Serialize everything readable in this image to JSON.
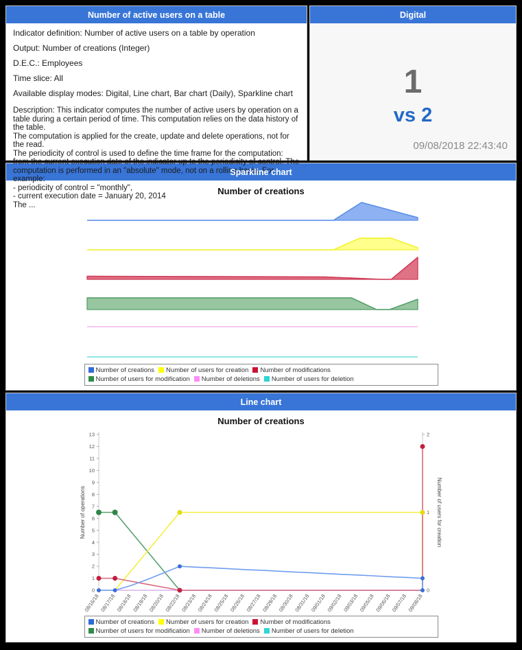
{
  "accent_color": "#3875d7",
  "indicator_panel": {
    "header": "Number of active users on a table",
    "info_lines": [
      "Indicator definition: Number of active users on a table by operation",
      "Output: Number of creations (Integer)",
      "D.E.C.: Employees",
      "Time slice: All",
      "Available display modes: Digital, Line chart, Bar chart (Daily), Sparkline chart"
    ],
    "description_lines": [
      "Description: This indicator computes the number of active users by operation on a table during a certain period of time. This computation relies on the data history of the table.",
      "The computation is applied for the create, update and delete operations, not for the read.",
      "The periodicity of control is used to define the time frame for the computation: from the current execution date of the indicator up to the periodicity of control. The computation is performed in an \"absolute\" mode, not on a rolling basis. For example:",
      "- periodicity of control = \"monthly\",",
      "- current execution date = January 20, 2014",
      "The ..."
    ]
  },
  "digital_panel": {
    "header": "Digital",
    "value": "1",
    "vs_label": "vs 2",
    "timestamp": "09/08/2018 22:43:40"
  },
  "sparkline_panel": {
    "header": "Sparkline chart",
    "title": "Number of creations"
  },
  "line_panel": {
    "header": "Line chart",
    "title": "Number of creations"
  },
  "legend": {
    "items": [
      {
        "label": "Number of creations",
        "color": "#2f6bdb"
      },
      {
        "label": "Number of users for creation",
        "color": "#ffff00"
      },
      {
        "label": "Number of modifications",
        "color": "#cc1133"
      },
      {
        "label": "Number of users for modification",
        "color": "#2d8c46"
      },
      {
        "label": "Number of deletions",
        "color": "#ff8cf7"
      },
      {
        "label": "Number of users for deletion",
        "color": "#2fd5d5"
      }
    ]
  },
  "chart_data": [
    {
      "type": "area",
      "variant": "sparklines",
      "title": "Number of creations",
      "series": [
        {
          "name": "Number of creations",
          "stroke": "#5d8fe8",
          "fill": "#82a9ef",
          "points": [
            [
              0,
              0
            ],
            [
              0.745,
              0
            ],
            [
              0.83,
              26
            ],
            [
              1,
              4
            ]
          ]
        },
        {
          "name": "Number of users for creation",
          "stroke": "#f2f22e",
          "fill": "#ffff80",
          "points": [
            [
              0,
              0
            ],
            [
              0.745,
              0
            ],
            [
              0.825,
              17
            ],
            [
              0.92,
              17
            ],
            [
              1,
              3
            ]
          ]
        },
        {
          "name": "Number of modifications",
          "stroke": "#cf3b57",
          "fill": "#dd6379",
          "points": [
            [
              0,
              4.5
            ],
            [
              0.72,
              3.5
            ],
            [
              0.89,
              0
            ],
            [
              0.92,
              0
            ],
            [
              1,
              32
            ]
          ]
        },
        {
          "name": "Number of users for modification",
          "stroke": "#55a06b",
          "fill": "#8cc096",
          "points": [
            [
              0,
              17
            ],
            [
              0.8,
              17
            ],
            [
              0.875,
              0
            ],
            [
              0.915,
              0
            ],
            [
              1,
              15
            ]
          ]
        },
        {
          "name": "Number of deletions",
          "stroke": "#f5b5f0",
          "fill": "none",
          "points": [
            [
              0,
              0
            ],
            [
              1,
              0
            ]
          ]
        },
        {
          "name": "Number of users for deletion",
          "stroke": "#6ce0e0",
          "fill": "none",
          "points": [
            [
              0,
              0
            ],
            [
              1,
              0
            ]
          ]
        }
      ]
    },
    {
      "type": "line",
      "title": "Number of creations",
      "x": [
        "08/16/18",
        "08/17/18",
        "08/18/18",
        "08/19/18",
        "08/20/18",
        "08/22/18",
        "08/23/18",
        "08/24/18",
        "08/25/18",
        "08/26/18",
        "08/27/18",
        "08/29/18",
        "08/30/18",
        "08/31/18",
        "09/01/18",
        "09/02/18",
        "09/03/18",
        "09/05/18",
        "09/06/18",
        "09/07/18",
        "09/08/18"
      ],
      "ylabel_left": "Number of operations",
      "ylabel_right": "Number of users for creation",
      "ylim_left": [
        0,
        13
      ],
      "ylim_right": [
        0,
        2
      ],
      "grid": false,
      "legend_position": "bottom",
      "series": [
        {
          "name": "Number of creations",
          "axis": "left",
          "color": "#6f9df0",
          "marker_color": "#3a6fd8",
          "marker_r": 3,
          "values": [
            0,
            0,
            0.4,
            0.9,
            1.45,
            2,
            1.93,
            1.87,
            1.8,
            1.73,
            1.67,
            1.6,
            1.53,
            1.47,
            1.4,
            1.33,
            1.27,
            1.2,
            1.13,
            1.07,
            1
          ],
          "markers": [
            [
              0,
              0
            ],
            [
              1,
              0
            ],
            [
              5,
              2
            ],
            [
              20,
              1
            ],
            [
              20,
              0
            ]
          ],
          "final_vertical_to": 0
        },
        {
          "name": "Number of users for creation",
          "axis": "right",
          "color": "#f4ef3d",
          "marker_color": "#e4da15",
          "marker_r": 3.5,
          "values": [
            null,
            0,
            0.25,
            0.5,
            0.75,
            1,
            1,
            1,
            1,
            1,
            1,
            1,
            1,
            1,
            1,
            1,
            1,
            1,
            1,
            1,
            1
          ],
          "markers": [
            [
              5,
              1
            ],
            [
              20,
              1
            ]
          ],
          "final_vertical_to": 0
        },
        {
          "name": "Number of modifications",
          "axis": "left",
          "color": "#d8677d",
          "marker_color": "#c21f3f",
          "marker_r": 3.5,
          "values": [
            1,
            1,
            0.75,
            0.5,
            0.25,
            0,
            0,
            0,
            0,
            0,
            0,
            0,
            0,
            0,
            0,
            0,
            0,
            0,
            0,
            0,
            0
          ],
          "markers": [
            [
              0,
              1
            ],
            [
              1,
              1
            ],
            [
              5,
              0
            ],
            [
              20,
              12
            ]
          ],
          "final_vertical_to": 12
        },
        {
          "name": "Number of users for modification",
          "axis": "right",
          "color": "#57a16e",
          "marker_color": "#2e8549",
          "marker_r": 4,
          "values": [
            1,
            1,
            0.75,
            0.5,
            0.25,
            0,
            null,
            null,
            null,
            null,
            null,
            null,
            null,
            null,
            null,
            null,
            null,
            null,
            null,
            null,
            null
          ],
          "markers": [
            [
              0,
              1
            ],
            [
              1,
              1
            ]
          ]
        },
        {
          "name": "Number of deletions",
          "axis": "left",
          "color": "#f3b5ef",
          "marker_color": "#f3b5ef",
          "marker_r": 0,
          "values": [
            0,
            0,
            0,
            0,
            0,
            0,
            0,
            0,
            0,
            0,
            0,
            0,
            0,
            0,
            0,
            0,
            0,
            0,
            0,
            0,
            0
          ],
          "markers": []
        },
        {
          "name": "Number of users for deletion",
          "axis": "left",
          "color": "#72e2e2",
          "marker_color": "#72e2e2",
          "marker_r": 0,
          "values": [
            0,
            0,
            0,
            0,
            0,
            0,
            0,
            0,
            0,
            0,
            0,
            0,
            0,
            0,
            0,
            0,
            0,
            0,
            0,
            0,
            0
          ],
          "markers": []
        }
      ]
    }
  ]
}
